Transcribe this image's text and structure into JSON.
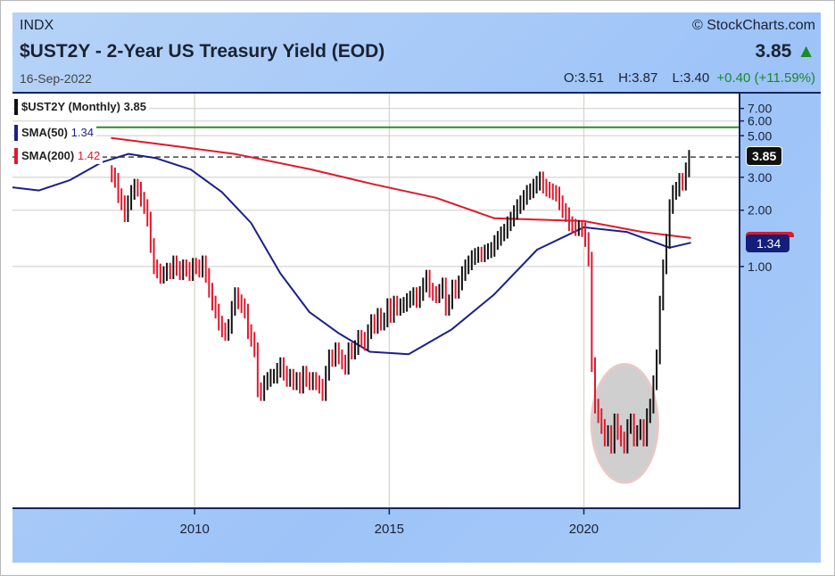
{
  "header": {
    "exchange": "INDX",
    "title": "$UST2Y - 2-Year US Treasury Yield (EOD)",
    "date": "16-Sep-2022",
    "copyright": "© StockCharts.com",
    "last": "3.85",
    "up_icon": "triangle-up-icon",
    "open_label": "O:",
    "open": "3.51",
    "high_label": "H:",
    "high": "3.87",
    "low_label": "L:",
    "low": "3.40",
    "change": "+0.40 (+11.59%)"
  },
  "colors": {
    "up": "#111111",
    "down": "#e0182d",
    "sma50": "#1c1f8a",
    "sma200": "#e0182d",
    "resistance": "#2e8b2e",
    "change": "#1a8a2a"
  },
  "chart_data": {
    "type": "line",
    "title": "$UST2Y - 2-Year US Treasury Yield (EOD)",
    "y_scale": "log",
    "ylim": [
      0.051,
      8.4
    ],
    "xlim": [
      2005.32,
      2024.0
    ],
    "x_ticks": [
      "2010",
      "2015",
      "2020"
    ],
    "x_tick_values": [
      2010,
      2015,
      2020
    ],
    "y_ticks": [
      "7.00",
      "6.00",
      "5.00",
      "3.00",
      "2.00",
      "1.00"
    ],
    "y_tick_values": [
      7,
      6,
      5,
      3,
      2,
      1
    ],
    "grid": true,
    "legend": [
      {
        "label": "$UST2Y (Monthly)",
        "value": "3.85"
      },
      {
        "label": "SMA(50)",
        "value": "1.34"
      },
      {
        "label": "SMA(200)",
        "value": "1.42"
      }
    ],
    "price_series": {
      "name": "$UST2Y (Monthly)",
      "start": "2007-11",
      "start_year": 2007.83,
      "closes": [
        3.1,
        2.9,
        2.4,
        2.2,
        1.9,
        2.2,
        2.5,
        2.7,
        2.6,
        2.3,
        2.1,
        1.8,
        1.3,
        1.0,
        0.95,
        0.89,
        0.92,
        0.96,
        0.94,
        1.05,
        0.98,
        0.93,
        1.0,
        0.97,
        0.92,
        1.02,
        1.0,
        0.96,
        1.05,
        0.9,
        0.75,
        0.64,
        0.58,
        0.5,
        0.46,
        0.44,
        0.48,
        0.6,
        0.71,
        0.65,
        0.62,
        0.58,
        0.45,
        0.41,
        0.36,
        0.22,
        0.21,
        0.24,
        0.25,
        0.26,
        0.26,
        0.28,
        0.3,
        0.27,
        0.25,
        0.26,
        0.24,
        0.25,
        0.23,
        0.27,
        0.25,
        0.24,
        0.25,
        0.24,
        0.23,
        0.21,
        0.27,
        0.33,
        0.32,
        0.36,
        0.33,
        0.31,
        0.29,
        0.36,
        0.35,
        0.37,
        0.42,
        0.41,
        0.39,
        0.45,
        0.51,
        0.48,
        0.55,
        0.5,
        0.52,
        0.62,
        0.55,
        0.64,
        0.6,
        0.62,
        0.63,
        0.66,
        0.68,
        0.71,
        0.66,
        0.72,
        0.8,
        0.88,
        0.75,
        0.72,
        0.7,
        0.74,
        0.8,
        0.6,
        0.65,
        0.78,
        0.74,
        0.82,
        0.92,
        1.0,
        1.05,
        1.12,
        1.15,
        1.17,
        1.16,
        1.2,
        1.22,
        1.24,
        1.35,
        1.42,
        1.5,
        1.55,
        1.7,
        1.8,
        1.95,
        2.1,
        2.2,
        2.35,
        2.5,
        2.55,
        2.7,
        2.8,
        2.95,
        2.7,
        2.6,
        2.55,
        2.5,
        2.45,
        2.2,
        2.0,
        1.9,
        1.7,
        1.65,
        1.6,
        1.62,
        1.58,
        1.4,
        1.1,
        0.3,
        0.18,
        0.16,
        0.14,
        0.12,
        0.13,
        0.11,
        0.15,
        0.13,
        0.12,
        0.11,
        0.14,
        0.15,
        0.12,
        0.13,
        0.14,
        0.12,
        0.16,
        0.18,
        0.24,
        0.33,
        0.64,
        1.0,
        1.37,
        2.1,
        2.5,
        2.6,
        2.9,
        2.8,
        3.3,
        3.85
      ]
    },
    "sma50": [
      [
        2005.32,
        2.65
      ],
      [
        2006.0,
        2.55
      ],
      [
        2006.8,
        2.9
      ],
      [
        2007.6,
        3.6
      ],
      [
        2008.3,
        4.0
      ],
      [
        2009.0,
        3.8
      ],
      [
        2009.9,
        3.3
      ],
      [
        2010.7,
        2.5
      ],
      [
        2011.45,
        1.71
      ],
      [
        2012.2,
        0.92
      ],
      [
        2012.95,
        0.57
      ],
      [
        2013.7,
        0.44
      ],
      [
        2014.5,
        0.35
      ],
      [
        2015.5,
        0.34
      ],
      [
        2016.6,
        0.46
      ],
      [
        2017.7,
        0.71
      ],
      [
        2018.8,
        1.23
      ],
      [
        2020.0,
        1.62
      ],
      [
        2021.1,
        1.53
      ],
      [
        2022.2,
        1.26
      ],
      [
        2022.75,
        1.34
      ]
    ],
    "sma200": [
      [
        2007.85,
        4.87
      ],
      [
        2009.5,
        4.4
      ],
      [
        2011.05,
        3.99
      ],
      [
        2013.0,
        3.3
      ],
      [
        2014.6,
        2.75
      ],
      [
        2016.2,
        2.33
      ],
      [
        2017.7,
        1.81
      ],
      [
        2020.0,
        1.75
      ],
      [
        2021.5,
        1.53
      ],
      [
        2022.75,
        1.42
      ]
    ],
    "resistance_level": 5.55,
    "last_price_line": 3.85,
    "price_tags": [
      {
        "label": "3.85",
        "value": 3.85
      },
      {
        "label": "1.34",
        "value": 1.34
      }
    ],
    "annotation": {
      "type": "circle",
      "x_range": [
        2020.2,
        2021.9
      ],
      "y_range": [
        0.07,
        0.3
      ]
    }
  }
}
